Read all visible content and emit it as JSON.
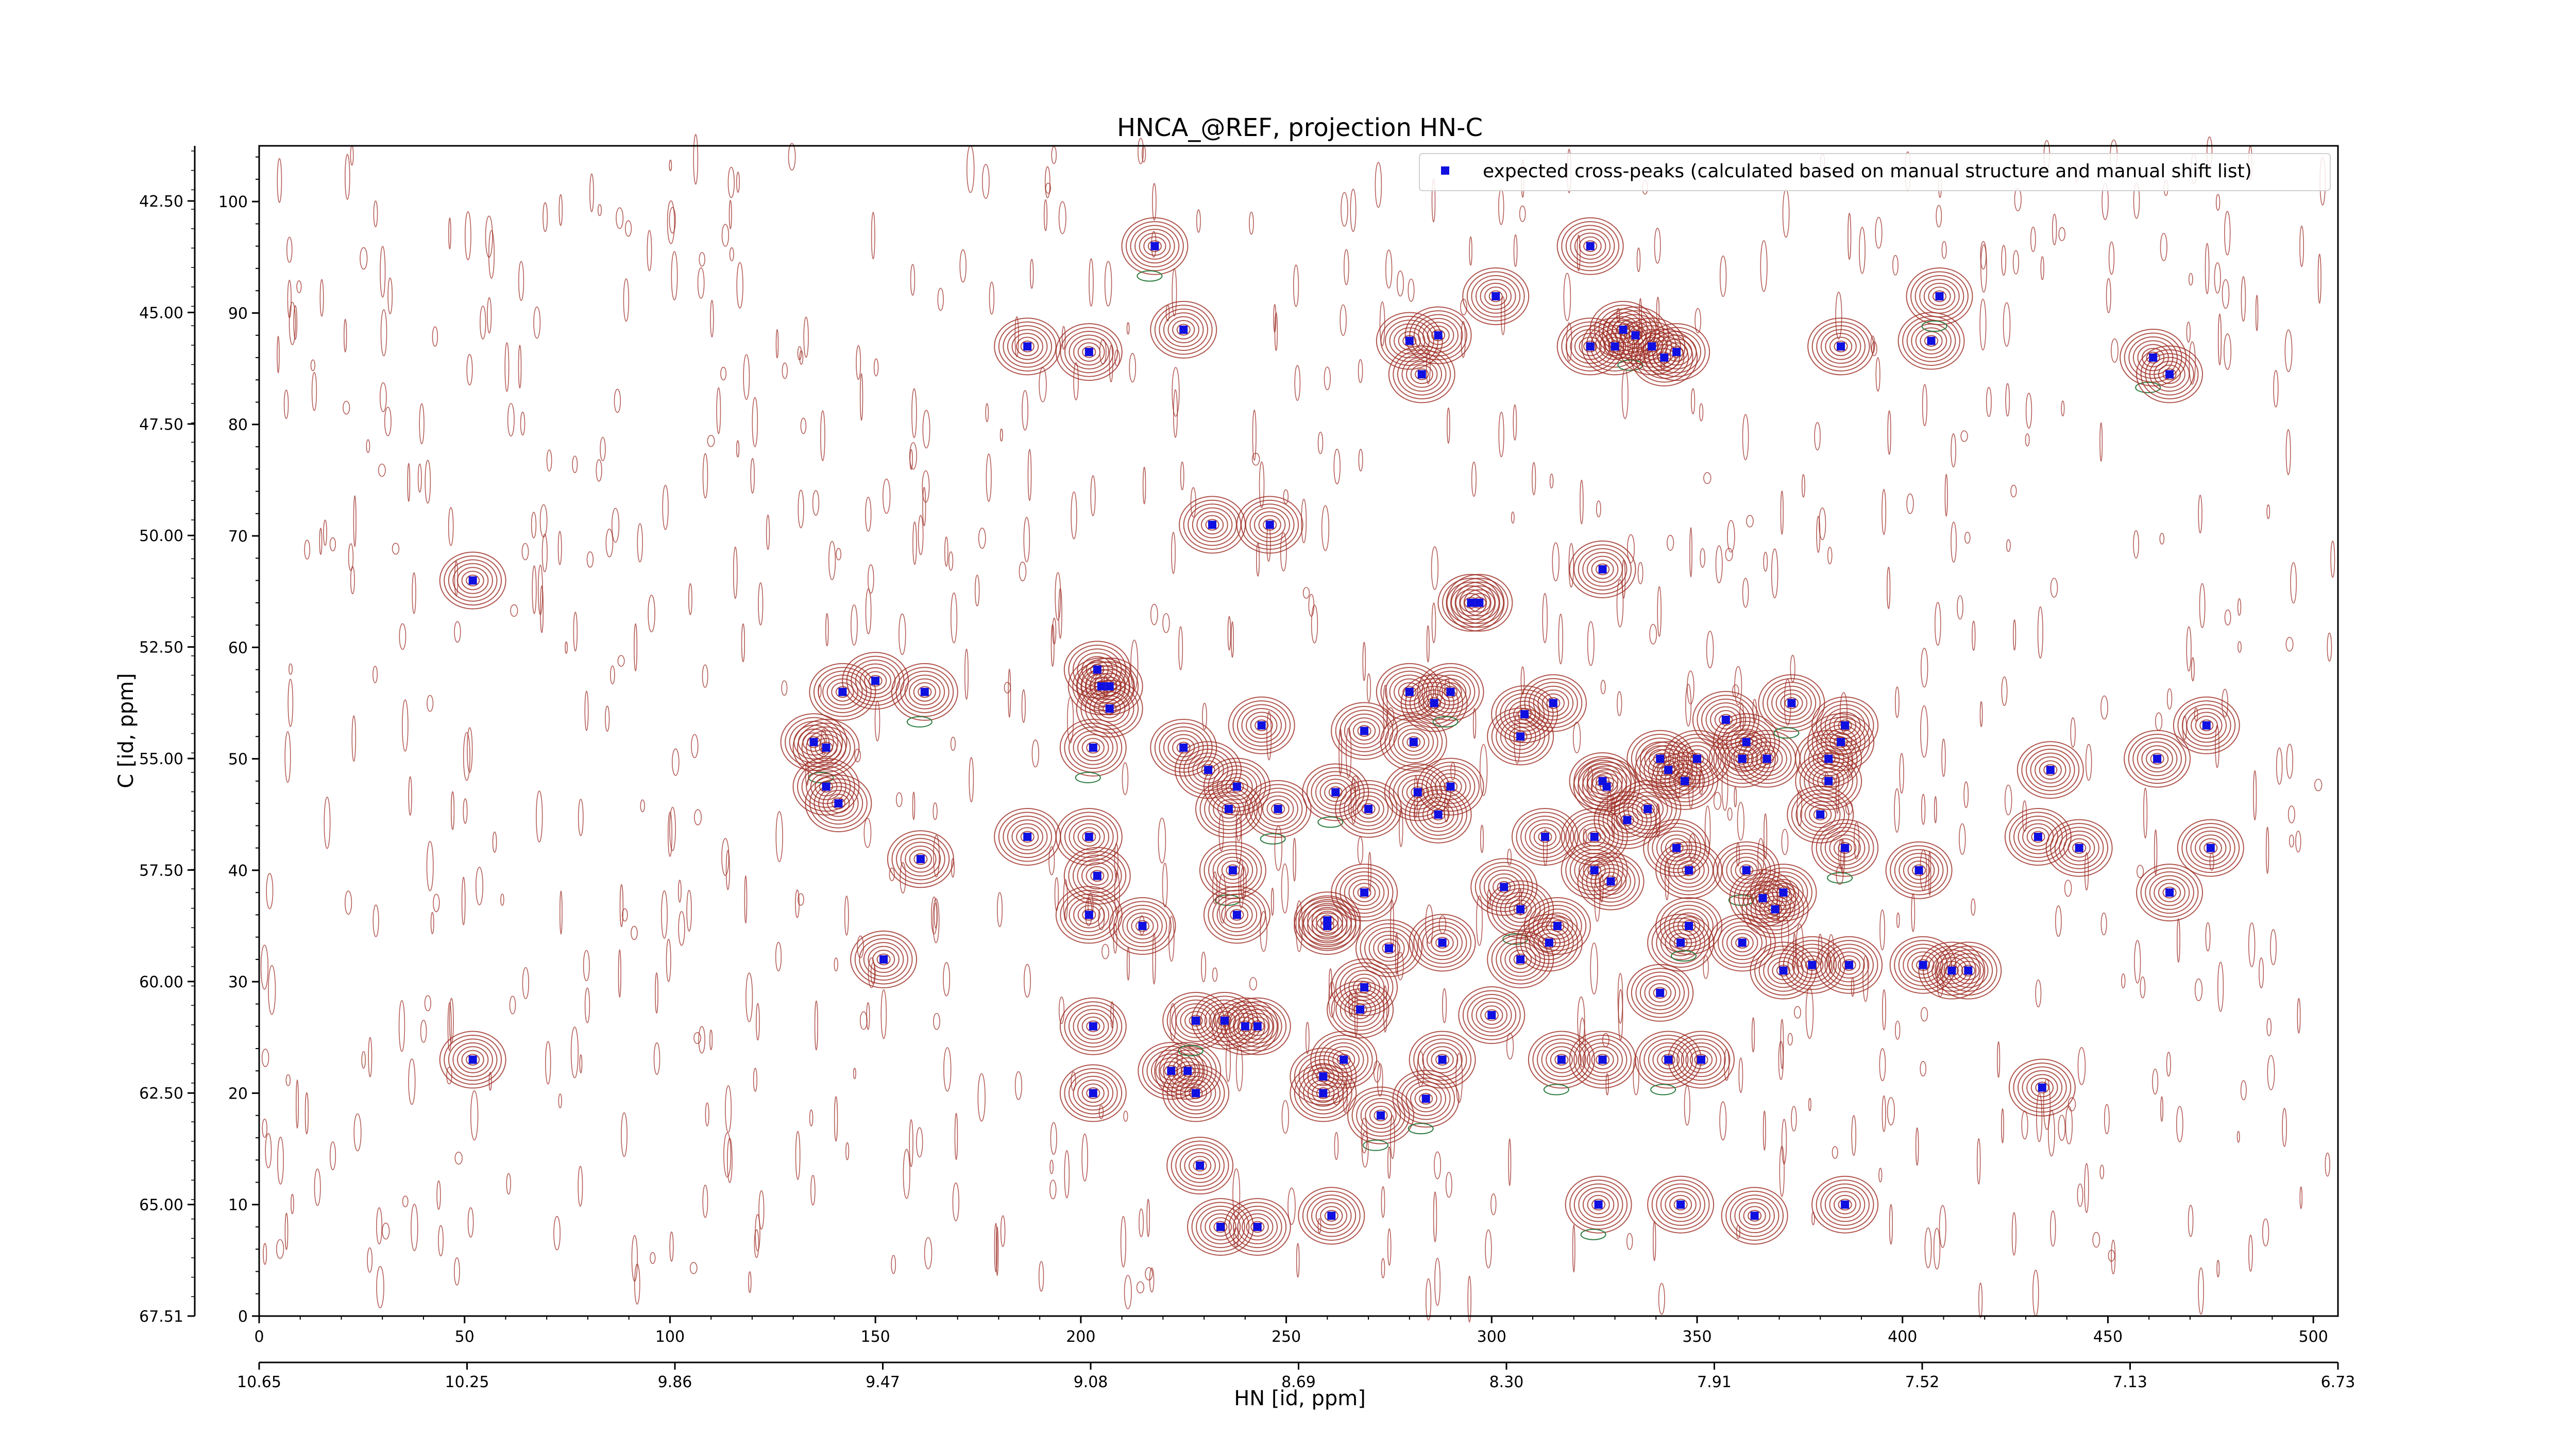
{
  "chart_data": {
    "type": "scatter",
    "title": "HNCA_@REF, projection HN-C",
    "xlabel": "HN [id, ppm]",
    "ylabel": "C [id, ppm]",
    "x_index_ticks": [
      "0",
      "50",
      "100",
      "150",
      "200",
      "250",
      "300",
      "350",
      "400",
      "450",
      "500"
    ],
    "x_ppm_ticks": [
      "10.65",
      "10.25",
      "9.86",
      "9.47",
      "9.08",
      "8.69",
      "8.30",
      "7.91",
      "7.52",
      "7.13",
      "6.73"
    ],
    "y_index_ticks": [
      "0",
      "10",
      "20",
      "30",
      "40",
      "50",
      "60",
      "70",
      "80",
      "90",
      "100"
    ],
    "y_ppm_ticks": [
      "42.50",
      "45.00",
      "47.50",
      "50.00",
      "52.50",
      "55.00",
      "57.50",
      "60.00",
      "62.50",
      "65.00",
      "67.51"
    ],
    "x_range": [
      0,
      506
    ],
    "y_range": [
      0,
      105
    ],
    "legend": {
      "label": "expected cross-peaks (calculated based on manual structure and manual shift list)",
      "position": "top-right"
    },
    "colors": {
      "peak_marker": "#1010e0",
      "contour_positive": "#9c2a22",
      "contour_negative": "#2e7d43"
    },
    "series": [
      {
        "name": "expected cross-peaks (calculated based on manual structure and manual shift list)",
        "points": [
          [
            52,
            66
          ],
          [
            52,
            23
          ],
          [
            135,
            51.5
          ],
          [
            138,
            51
          ],
          [
            138,
            47.5
          ],
          [
            141,
            46
          ],
          [
            142,
            56
          ],
          [
            150,
            57
          ],
          [
            152,
            32
          ],
          [
            161,
            41
          ],
          [
            162,
            56
          ],
          [
            187,
            43
          ],
          [
            187,
            87
          ],
          [
            202,
            36
          ],
          [
            202,
            43
          ],
          [
            202,
            86.5
          ],
          [
            203,
            26
          ],
          [
            203,
            51
          ],
          [
            203,
            20
          ],
          [
            204,
            58
          ],
          [
            205,
            56.5
          ],
          [
            204,
            39.5
          ],
          [
            207,
            56.5
          ],
          [
            207,
            54.5
          ],
          [
            218,
            96
          ],
          [
            215,
            35
          ],
          [
            222,
            22
          ],
          [
            226,
            22
          ],
          [
            225,
            51
          ],
          [
            225,
            88.5
          ],
          [
            228,
            20
          ],
          [
            228,
            26.5
          ],
          [
            229,
            13.5
          ],
          [
            231,
            49
          ],
          [
            232,
            71
          ],
          [
            234,
            8
          ],
          [
            235,
            26.5
          ],
          [
            236,
            45.5
          ],
          [
            237,
            40
          ],
          [
            238,
            47.5
          ],
          [
            238,
            36
          ],
          [
            240,
            26
          ],
          [
            243,
            8
          ],
          [
            244,
            53
          ],
          [
            246,
            71
          ],
          [
            248,
            45.5
          ],
          [
            243,
            26
          ],
          [
            260,
            35.5
          ],
          [
            259,
            20
          ],
          [
            259,
            21.5
          ],
          [
            260,
            35
          ],
          [
            261,
            9
          ],
          [
            262,
            47
          ],
          [
            264,
            23
          ],
          [
            268,
            27.5
          ],
          [
            269,
            52.5
          ],
          [
            269,
            29.5
          ],
          [
            269,
            38
          ],
          [
            270,
            45.5
          ],
          [
            273,
            18
          ],
          [
            275,
            33
          ],
          [
            280,
            87.5
          ],
          [
            280,
            56
          ],
          [
            281,
            51.5
          ],
          [
            282,
            47
          ],
          [
            283,
            84.5
          ],
          [
            284,
            19.5
          ],
          [
            286,
            55
          ],
          [
            287,
            88
          ],
          [
            287,
            45
          ],
          [
            288,
            23
          ],
          [
            288,
            33.5
          ],
          [
            290,
            47.5
          ],
          [
            290,
            56
          ],
          [
            295,
            64
          ],
          [
            297,
            64
          ],
          [
            300,
            27
          ],
          [
            301,
            91.5
          ],
          [
            303,
            38.5
          ],
          [
            307,
            52
          ],
          [
            307,
            36.5
          ],
          [
            307,
            32
          ],
          [
            308,
            54
          ],
          [
            313,
            43
          ],
          [
            314,
            33.5
          ],
          [
            315,
            55
          ],
          [
            316,
            35
          ],
          [
            317,
            23
          ],
          [
            324,
            96
          ],
          [
            324,
            87
          ],
          [
            325,
            40
          ],
          [
            325,
            43
          ],
          [
            327,
            67
          ],
          [
            327,
            23
          ],
          [
            326,
            10
          ],
          [
            327,
            48
          ],
          [
            328,
            47.5
          ],
          [
            329,
            39
          ],
          [
            330,
            87
          ],
          [
            332,
            88.5
          ],
          [
            333,
            44.5
          ],
          [
            335,
            88
          ],
          [
            339,
            87
          ],
          [
            338,
            45.5
          ],
          [
            341,
            50
          ],
          [
            341,
            29
          ],
          [
            342,
            86
          ],
          [
            343,
            49
          ],
          [
            343,
            23
          ],
          [
            345,
            86.5
          ],
          [
            345,
            42
          ],
          [
            346,
            10
          ],
          [
            346,
            33.5
          ],
          [
            348,
            40
          ],
          [
            347,
            48
          ],
          [
            348,
            35
          ],
          [
            350,
            50
          ],
          [
            351,
            23
          ],
          [
            357,
            53.5
          ],
          [
            361,
            50
          ],
          [
            362,
            51.5
          ],
          [
            361,
            33.5
          ],
          [
            362,
            40
          ],
          [
            364,
            9
          ],
          [
            366,
            37.5
          ],
          [
            367,
            50
          ],
          [
            369,
            36.5
          ],
          [
            371,
            31
          ],
          [
            371,
            38
          ],
          [
            373,
            55
          ],
          [
            378,
            31.5
          ],
          [
            380,
            45
          ],
          [
            382,
            48
          ],
          [
            382,
            50
          ],
          [
            385,
            51.5
          ],
          [
            386,
            53
          ],
          [
            386,
            42
          ],
          [
            386,
            10
          ],
          [
            385,
            87
          ],
          [
            387,
            31.5
          ],
          [
            404,
            40
          ],
          [
            405,
            31.5
          ],
          [
            407,
            87.5
          ],
          [
            409,
            91.5
          ],
          [
            412,
            31
          ],
          [
            416,
            31
          ],
          [
            433,
            43
          ],
          [
            434,
            20.5
          ],
          [
            436,
            49
          ],
          [
            443,
            42
          ],
          [
            461,
            86
          ],
          [
            462,
            50
          ],
          [
            465,
            84.5
          ],
          [
            465,
            38
          ],
          [
            474,
            53
          ],
          [
            475,
            42
          ]
        ]
      }
    ]
  }
}
